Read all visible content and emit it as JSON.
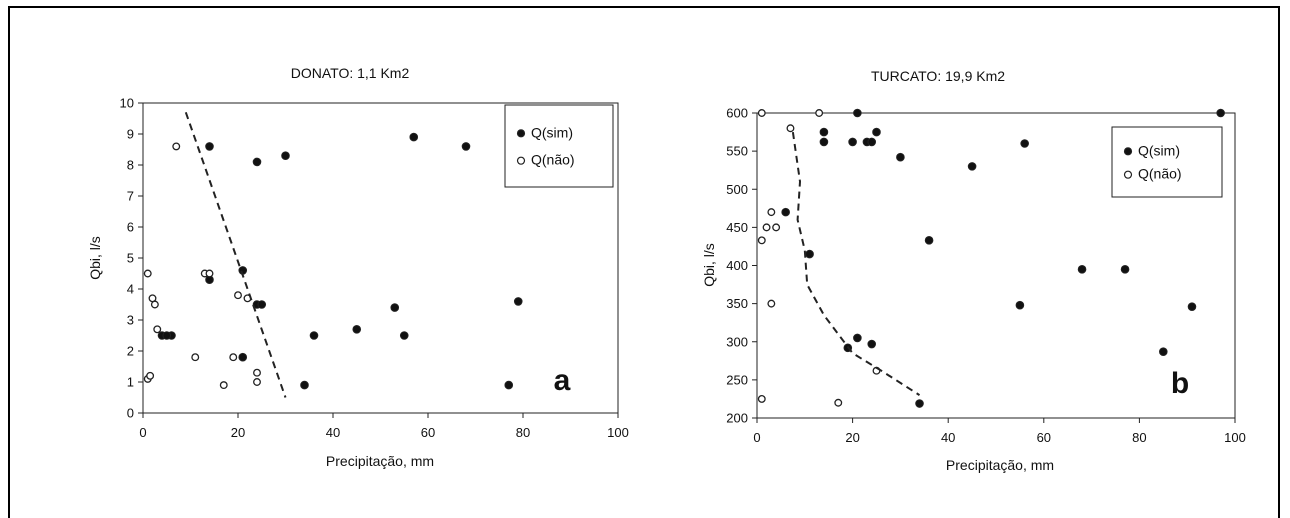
{
  "chart_data": [
    {
      "type": "scatter",
      "panel": "a",
      "title": "DONATO: 1,1 Km2",
      "xlabel": "Precipitação, mm",
      "ylabel": "Qbi, l/s",
      "xlim": [
        0,
        100
      ],
      "ylim": [
        0,
        10
      ],
      "xticks": [
        0,
        20,
        40,
        60,
        80,
        100
      ],
      "yticks": [
        0,
        1,
        2,
        3,
        4,
        5,
        6,
        7,
        8,
        9,
        10
      ],
      "grid": false,
      "legend": "top-right",
      "series": [
        {
          "name": "Q(sim)",
          "marker": "filled-circle",
          "points": [
            [
              14,
              8.6
            ],
            [
              24,
              8.1
            ],
            [
              30,
              8.3
            ],
            [
              57,
              8.9
            ],
            [
              68,
              8.6
            ],
            [
              21,
              4.6
            ],
            [
              14,
              4.3
            ],
            [
              24,
              3.5
            ],
            [
              25,
              3.5
            ],
            [
              79,
              3.6
            ],
            [
              53,
              3.4
            ],
            [
              4,
              2.5
            ],
            [
              6,
              2.5
            ],
            [
              5,
              2.5
            ],
            [
              36,
              2.5
            ],
            [
              45,
              2.7
            ],
            [
              55,
              2.5
            ],
            [
              21,
              1.8
            ],
            [
              34,
              0.9
            ],
            [
              77,
              0.9
            ]
          ]
        },
        {
          "name": "Q(não)",
          "marker": "open-circle",
          "points": [
            [
              7,
              8.6
            ],
            [
              1,
              4.5
            ],
            [
              2,
              3.7
            ],
            [
              2.5,
              3.5
            ],
            [
              1,
              1.1
            ],
            [
              1.5,
              1.2
            ],
            [
              3,
              2.7
            ],
            [
              11,
              1.8
            ],
            [
              19,
              1.8
            ],
            [
              13,
              4.5
            ],
            [
              14,
              4.5
            ],
            [
              20,
              3.8
            ],
            [
              22,
              3.7
            ],
            [
              24,
              1.3
            ],
            [
              24,
              1.0
            ],
            [
              17,
              0.9
            ]
          ]
        },
        {
          "name": "",
          "marker": "dashed-line",
          "points": [
            [
              9,
              9.7
            ],
            [
              30,
              0.5
            ]
          ]
        }
      ]
    },
    {
      "type": "scatter",
      "panel": "b",
      "title": "TURCATO: 19,9 Km2",
      "xlabel": "Precipitação, mm",
      "ylabel": "Qbi, l/s",
      "xlim": [
        0,
        100
      ],
      "ylim": [
        200,
        600
      ],
      "xticks": [
        0,
        20,
        40,
        60,
        80,
        100
      ],
      "yticks": [
        200,
        250,
        300,
        350,
        400,
        450,
        500,
        550,
        600
      ],
      "grid": false,
      "legend": "top-right",
      "series": [
        {
          "name": "Q(sim)",
          "marker": "filled-circle",
          "points": [
            [
              14,
              575
            ],
            [
              14,
              562
            ],
            [
              21,
              600
            ],
            [
              20,
              562
            ],
            [
              23,
              562
            ],
            [
              24,
              562
            ],
            [
              25,
              575
            ],
            [
              30,
              542
            ],
            [
              45,
              530
            ],
            [
              56,
              560
            ],
            [
              97,
              600
            ],
            [
              6,
              470
            ],
            [
              11,
              415
            ],
            [
              36,
              433
            ],
            [
              68,
              395
            ],
            [
              77,
              395
            ],
            [
              55,
              348
            ],
            [
              91,
              346
            ],
            [
              21,
              305
            ],
            [
              24,
              297
            ],
            [
              19,
              292
            ],
            [
              85,
              287
            ],
            [
              34,
              219
            ]
          ]
        },
        {
          "name": "Q(não)",
          "marker": "open-circle",
          "points": [
            [
              1,
              600
            ],
            [
              13,
              600
            ],
            [
              7,
              580
            ],
            [
              3,
              470
            ],
            [
              2,
              450
            ],
            [
              4,
              450
            ],
            [
              1,
              433
            ],
            [
              3,
              350
            ],
            [
              25,
              262
            ],
            [
              1,
              225
            ],
            [
              17,
              220
            ]
          ]
        },
        {
          "name": "",
          "marker": "dashed-line",
          "points": [
            [
              7.5,
              575
            ],
            [
              9,
              510
            ],
            [
              8.5,
              460
            ],
            [
              10,
              420
            ],
            [
              10.5,
              375
            ],
            [
              14,
              335
            ],
            [
              20,
              285
            ],
            [
              26,
              262
            ],
            [
              34,
              230
            ]
          ]
        }
      ]
    }
  ]
}
